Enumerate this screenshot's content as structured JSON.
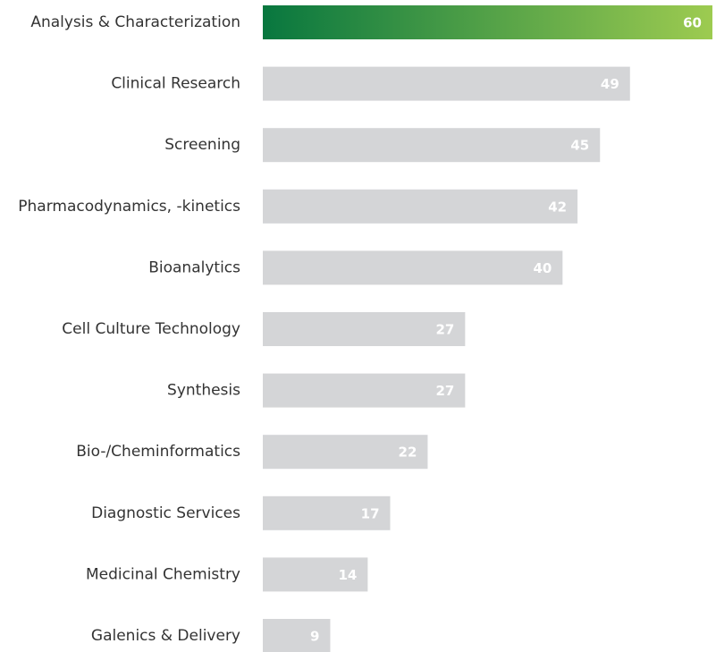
{
  "chart_data": {
    "type": "bar",
    "orientation": "horizontal",
    "categories": [
      "Analysis & Characterization",
      "Clinical Research",
      "Screening",
      "Pharmacodynamics, -kinetics",
      "Bioanalytics",
      "Cell Culture Technology",
      "Synthesis",
      "Bio-/Cheminformatics",
      "Diagnostic Services",
      "Medicinal Chemistry",
      "Galenics & Delivery"
    ],
    "values": [
      60,
      49,
      45,
      42,
      40,
      27,
      27,
      22,
      17,
      14,
      9
    ],
    "color": "#d4d5d7",
    "highlight": {
      "index": 0,
      "gradient": [
        "#08773f",
        "#9dcb50"
      ]
    },
    "xlim": [
      0,
      60
    ]
  }
}
